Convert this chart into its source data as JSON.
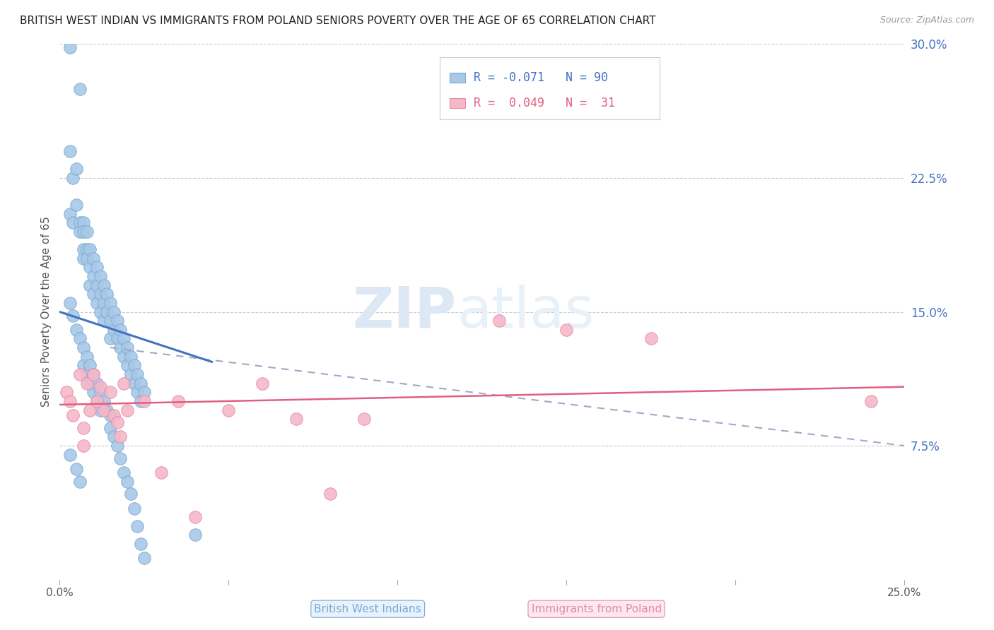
{
  "title": "BRITISH WEST INDIAN VS IMMIGRANTS FROM POLAND SENIORS POVERTY OVER THE AGE OF 65 CORRELATION CHART",
  "source": "Source: ZipAtlas.com",
  "ylabel": "Seniors Poverty Over the Age of 65",
  "xlim": [
    0.0,
    0.25
  ],
  "ylim": [
    0.0,
    0.3
  ],
  "grid_color": "#cccccc",
  "background_color": "#ffffff",
  "watermark_zip": "ZIP",
  "watermark_atlas": "atlas",
  "legend_r1": "R = -0.071",
  "legend_n1": "N = 90",
  "legend_r2": "R =  0.049",
  "legend_n2": "N =  31",
  "series1_color": "#a8c8e8",
  "series2_color": "#f4b8c8",
  "series1_edge": "#7aaad0",
  "series2_edge": "#e888a8",
  "trend1_color": "#4472c4",
  "trend2_color": "#e06080",
  "trend_dash_color": "#a0a8c8",
  "bwi_x": [
    0.003,
    0.006,
    0.003,
    0.004,
    0.003,
    0.004,
    0.005,
    0.005,
    0.006,
    0.006,
    0.007,
    0.007,
    0.007,
    0.007,
    0.008,
    0.008,
    0.008,
    0.009,
    0.009,
    0.009,
    0.01,
    0.01,
    0.01,
    0.011,
    0.011,
    0.011,
    0.012,
    0.012,
    0.012,
    0.013,
    0.013,
    0.013,
    0.014,
    0.014,
    0.015,
    0.015,
    0.015,
    0.016,
    0.016,
    0.017,
    0.017,
    0.018,
    0.018,
    0.019,
    0.019,
    0.02,
    0.02,
    0.021,
    0.021,
    0.022,
    0.022,
    0.023,
    0.023,
    0.024,
    0.024,
    0.025,
    0.003,
    0.004,
    0.005,
    0.006,
    0.007,
    0.007,
    0.008,
    0.008,
    0.009,
    0.009,
    0.01,
    0.01,
    0.011,
    0.011,
    0.012,
    0.012,
    0.013,
    0.014,
    0.015,
    0.015,
    0.016,
    0.017,
    0.018,
    0.019,
    0.02,
    0.021,
    0.022,
    0.023,
    0.024,
    0.025,
    0.04,
    0.003,
    0.005,
    0.006
  ],
  "bwi_y": [
    0.298,
    0.275,
    0.24,
    0.225,
    0.205,
    0.2,
    0.23,
    0.21,
    0.2,
    0.195,
    0.2,
    0.195,
    0.185,
    0.18,
    0.195,
    0.185,
    0.18,
    0.185,
    0.175,
    0.165,
    0.18,
    0.17,
    0.16,
    0.175,
    0.165,
    0.155,
    0.17,
    0.16,
    0.15,
    0.165,
    0.155,
    0.145,
    0.16,
    0.15,
    0.155,
    0.145,
    0.135,
    0.15,
    0.14,
    0.145,
    0.135,
    0.14,
    0.13,
    0.135,
    0.125,
    0.13,
    0.12,
    0.125,
    0.115,
    0.12,
    0.11,
    0.115,
    0.105,
    0.11,
    0.1,
    0.105,
    0.155,
    0.148,
    0.14,
    0.135,
    0.13,
    0.12,
    0.125,
    0.115,
    0.12,
    0.11,
    0.115,
    0.105,
    0.11,
    0.1,
    0.105,
    0.095,
    0.1,
    0.095,
    0.092,
    0.085,
    0.08,
    0.075,
    0.068,
    0.06,
    0.055,
    0.048,
    0.04,
    0.03,
    0.02,
    0.012,
    0.025,
    0.07,
    0.062,
    0.055
  ],
  "pol_x": [
    0.002,
    0.003,
    0.004,
    0.006,
    0.007,
    0.007,
    0.008,
    0.009,
    0.01,
    0.011,
    0.012,
    0.013,
    0.015,
    0.016,
    0.017,
    0.018,
    0.019,
    0.02,
    0.025,
    0.03,
    0.035,
    0.04,
    0.05,
    0.06,
    0.07,
    0.08,
    0.09,
    0.13,
    0.15,
    0.175,
    0.24
  ],
  "pol_y": [
    0.105,
    0.1,
    0.092,
    0.115,
    0.085,
    0.075,
    0.11,
    0.095,
    0.115,
    0.1,
    0.108,
    0.095,
    0.105,
    0.092,
    0.088,
    0.08,
    0.11,
    0.095,
    0.1,
    0.06,
    0.1,
    0.035,
    0.095,
    0.11,
    0.09,
    0.048,
    0.09,
    0.145,
    0.14,
    0.135,
    0.1
  ]
}
